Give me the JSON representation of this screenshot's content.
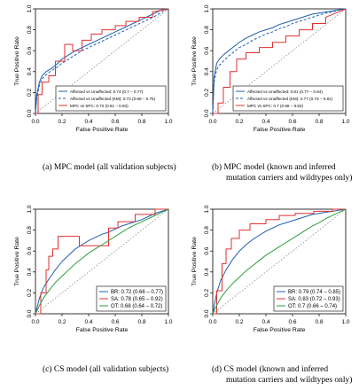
{
  "captions": {
    "a": [
      "(a) MPC model (all validation subjects)"
    ],
    "b": [
      "(b) MPC model (known and inferred",
      "mutation carriers and wildtypes only)"
    ],
    "c": [
      "(c) CS model (all validation subjects)"
    ],
    "d": [
      "(d) CS model (known and inferred",
      "mutation carriers and wildtypes only)"
    ]
  },
  "chart_data": [
    {
      "id": "a",
      "type": "line",
      "xlabel": "False Positive Rate",
      "ylabel": "True Positive Rate",
      "xlim": [
        0,
        1
      ],
      "ylim": [
        0,
        1
      ],
      "xticks": [
        "0.0",
        "0.2",
        "0.4",
        "0.6",
        "0.8",
        "1.0"
      ],
      "yticks": [
        "0.0",
        "0.2",
        "0.4",
        "0.6",
        "0.8",
        "1.0"
      ],
      "reference_line": true,
      "legend_position": "bottom-right",
      "series": [
        {
          "name": "Affected vs Unaffected: 0.74 (0.7 – 0.77)",
          "color": "#1f5fb0",
          "dash": "solid",
          "x": [
            0,
            0.01,
            0.03,
            0.05,
            0.08,
            0.12,
            0.16,
            0.2,
            0.25,
            0.3,
            0.35,
            0.4,
            0.45,
            0.5,
            0.55,
            0.6,
            0.65,
            0.7,
            0.75,
            0.8,
            0.85,
            0.9,
            0.95,
            1.0
          ],
          "y": [
            0,
            0.18,
            0.3,
            0.36,
            0.4,
            0.43,
            0.47,
            0.52,
            0.56,
            0.6,
            0.63,
            0.66,
            0.69,
            0.72,
            0.75,
            0.78,
            0.81,
            0.84,
            0.87,
            0.9,
            0.93,
            0.96,
            0.99,
            1.0
          ]
        },
        {
          "name": "Affected vs Unaffected (KM): 0.72 (0.68 – 0.75)",
          "color": "#1f5fb0",
          "dash": "dashed",
          "x": [
            0,
            0.01,
            0.03,
            0.05,
            0.08,
            0.12,
            0.16,
            0.2,
            0.25,
            0.3,
            0.35,
            0.4,
            0.45,
            0.5,
            0.55,
            0.6,
            0.65,
            0.7,
            0.75,
            0.8,
            0.85,
            0.9,
            0.95,
            1.0
          ],
          "y": [
            0,
            0.15,
            0.27,
            0.33,
            0.37,
            0.41,
            0.44,
            0.48,
            0.52,
            0.56,
            0.6,
            0.63,
            0.66,
            0.69,
            0.72,
            0.75,
            0.78,
            0.81,
            0.84,
            0.87,
            0.9,
            0.93,
            0.97,
            1.0
          ]
        },
        {
          "name": "MPC vs SPC: 0.72 (0.61 – 0.83)",
          "color": "#e03030",
          "dash": "solid",
          "x": [
            0,
            0.02,
            0.02,
            0.05,
            0.05,
            0.1,
            0.1,
            0.15,
            0.15,
            0.22,
            0.22,
            0.28,
            0.28,
            0.35,
            0.35,
            0.42,
            0.42,
            0.5,
            0.5,
            0.6,
            0.6,
            0.68,
            0.68,
            0.78,
            0.78,
            0.88,
            0.88,
            1.0
          ],
          "y": [
            0,
            0,
            0.18,
            0.18,
            0.3,
            0.3,
            0.36,
            0.36,
            0.5,
            0.5,
            0.66,
            0.66,
            0.6,
            0.6,
            0.7,
            0.7,
            0.76,
            0.76,
            0.8,
            0.8,
            0.84,
            0.84,
            0.88,
            0.88,
            0.92,
            0.92,
            0.97,
            1.0
          ]
        }
      ]
    },
    {
      "id": "b",
      "type": "line",
      "xlabel": "False Positive Rate",
      "ylabel": "True Positive Rate",
      "xlim": [
        0,
        1
      ],
      "ylim": [
        0,
        1
      ],
      "xticks": [
        "0.0",
        "0.2",
        "0.4",
        "0.6",
        "0.8",
        "1.0"
      ],
      "yticks": [
        "0.0",
        "0.2",
        "0.4",
        "0.6",
        "0.8",
        "1.0"
      ],
      "reference_line": true,
      "legend_position": "bottom-right",
      "series": [
        {
          "name": "Affected vs Unaffected: 0.81 (0.77 – 0.84)",
          "color": "#1f5fb0",
          "dash": "solid",
          "x": [
            0,
            0.01,
            0.03,
            0.05,
            0.08,
            0.12,
            0.16,
            0.2,
            0.25,
            0.3,
            0.35,
            0.4,
            0.45,
            0.5,
            0.55,
            0.6,
            0.65,
            0.7,
            0.75,
            0.8,
            0.85,
            0.9,
            0.95,
            1.0
          ],
          "y": [
            0,
            0.35,
            0.48,
            0.52,
            0.56,
            0.6,
            0.64,
            0.68,
            0.72,
            0.75,
            0.78,
            0.8,
            0.82,
            0.85,
            0.87,
            0.89,
            0.91,
            0.93,
            0.95,
            0.96,
            0.97,
            0.98,
            0.99,
            1.0
          ]
        },
        {
          "name": "Affected vs Unaffected (KM): 0.77 (0.73 – 0.81)",
          "color": "#1f5fb0",
          "dash": "dashed",
          "x": [
            0,
            0.01,
            0.03,
            0.05,
            0.08,
            0.12,
            0.16,
            0.2,
            0.25,
            0.3,
            0.35,
            0.4,
            0.45,
            0.5,
            0.55,
            0.6,
            0.65,
            0.7,
            0.75,
            0.8,
            0.85,
            0.9,
            0.95,
            1.0
          ],
          "y": [
            0,
            0.3,
            0.42,
            0.46,
            0.5,
            0.55,
            0.59,
            0.63,
            0.66,
            0.7,
            0.73,
            0.76,
            0.78,
            0.81,
            0.83,
            0.86,
            0.88,
            0.9,
            0.92,
            0.94,
            0.96,
            0.97,
            0.99,
            1.0
          ]
        },
        {
          "name": "MPC vs SPC: 0.7 (0.58 – 0.82)",
          "color": "#e03030",
          "dash": "solid",
          "x": [
            0,
            0.04,
            0.04,
            0.08,
            0.08,
            0.13,
            0.13,
            0.18,
            0.18,
            0.25,
            0.25,
            0.35,
            0.35,
            0.45,
            0.45,
            0.55,
            0.55,
            0.65,
            0.65,
            0.75,
            0.75,
            0.85,
            0.85,
            1.0
          ],
          "y": [
            0,
            0,
            0.1,
            0.1,
            0.25,
            0.25,
            0.4,
            0.4,
            0.52,
            0.52,
            0.58,
            0.58,
            0.63,
            0.63,
            0.68,
            0.68,
            0.74,
            0.74,
            0.8,
            0.8,
            0.86,
            0.86,
            0.92,
            1.0
          ]
        }
      ]
    },
    {
      "id": "c",
      "type": "line",
      "xlabel": "False Positive Rate",
      "ylabel": "True Positive Rate",
      "xlim": [
        0,
        1
      ],
      "ylim": [
        0,
        1
      ],
      "xticks": [
        "0.0",
        "0.2",
        "0.4",
        "0.6",
        "0.8",
        "1.0"
      ],
      "yticks": [
        "0.0",
        "0.2",
        "0.4",
        "0.6",
        "0.8",
        "1.0"
      ],
      "reference_line": true,
      "legend_position": "bottom-right",
      "series": [
        {
          "name": "BR: 0.72 (0.66 – 0.77)",
          "color": "#1f5fb0",
          "dash": "solid",
          "x": [
            0,
            0.03,
            0.06,
            0.1,
            0.15,
            0.2,
            0.25,
            0.3,
            0.35,
            0.4,
            0.45,
            0.5,
            0.55,
            0.6,
            0.65,
            0.7,
            0.75,
            0.8,
            0.85,
            0.9,
            0.95,
            1.0
          ],
          "y": [
            0,
            0.15,
            0.25,
            0.33,
            0.42,
            0.5,
            0.56,
            0.62,
            0.66,
            0.7,
            0.73,
            0.76,
            0.78,
            0.81,
            0.84,
            0.86,
            0.88,
            0.9,
            0.93,
            0.96,
            0.98,
            1.0
          ]
        },
        {
          "name": "SA: 0.78 (0.65 – 0.92)",
          "color": "#e03030",
          "dash": "solid",
          "x": [
            0,
            0.04,
            0.04,
            0.08,
            0.08,
            0.1,
            0.1,
            0.13,
            0.13,
            0.17,
            0.17,
            0.33,
            0.33,
            0.55,
            0.55,
            0.62,
            0.62,
            0.75,
            0.75,
            0.9,
            0.9,
            1.0
          ],
          "y": [
            0,
            0,
            0.2,
            0.2,
            0.42,
            0.42,
            0.55,
            0.55,
            0.62,
            0.62,
            0.74,
            0.74,
            0.65,
            0.65,
            0.82,
            0.82,
            0.88,
            0.88,
            0.95,
            0.95,
            1.0,
            1.0
          ]
        },
        {
          "name": "OT: 0.68 (0.64 – 0.72)",
          "color": "#2e9e3e",
          "dash": "solid",
          "x": [
            0,
            0.03,
            0.06,
            0.1,
            0.15,
            0.2,
            0.25,
            0.3,
            0.35,
            0.4,
            0.45,
            0.5,
            0.55,
            0.6,
            0.65,
            0.7,
            0.75,
            0.8,
            0.85,
            0.9,
            0.95,
            1.0
          ],
          "y": [
            0,
            0.08,
            0.15,
            0.22,
            0.3,
            0.36,
            0.42,
            0.48,
            0.53,
            0.58,
            0.62,
            0.66,
            0.7,
            0.74,
            0.78,
            0.82,
            0.85,
            0.88,
            0.91,
            0.94,
            0.97,
            1.0
          ]
        }
      ]
    },
    {
      "id": "d",
      "type": "line",
      "xlabel": "False Positive Rate",
      "ylabel": "True Positive Rate",
      "xlim": [
        0,
        1
      ],
      "ylim": [
        0,
        1
      ],
      "xticks": [
        "0.0",
        "0.2",
        "0.4",
        "0.6",
        "0.8",
        "1.0"
      ],
      "yticks": [
        "0.0",
        "0.2",
        "0.4",
        "0.6",
        "0.8",
        "1.0"
      ],
      "reference_line": true,
      "legend_position": "bottom-right",
      "series": [
        {
          "name": "BR: 0.79 (0.74 – 0.85)",
          "color": "#1f5fb0",
          "dash": "solid",
          "x": [
            0,
            0.03,
            0.06,
            0.1,
            0.15,
            0.2,
            0.25,
            0.3,
            0.35,
            0.4,
            0.45,
            0.5,
            0.55,
            0.6,
            0.65,
            0.7,
            0.75,
            0.8,
            0.85,
            0.9,
            0.95,
            1.0
          ],
          "y": [
            0,
            0.2,
            0.32,
            0.42,
            0.52,
            0.6,
            0.66,
            0.71,
            0.75,
            0.79,
            0.82,
            0.85,
            0.87,
            0.89,
            0.91,
            0.93,
            0.95,
            0.96,
            0.97,
            0.98,
            0.99,
            1.0
          ]
        },
        {
          "name": "SA: 0.83 (0.72 – 0.93)",
          "color": "#e03030",
          "dash": "solid",
          "x": [
            0,
            0.03,
            0.03,
            0.07,
            0.07,
            0.1,
            0.1,
            0.14,
            0.14,
            0.2,
            0.2,
            0.28,
            0.28,
            0.4,
            0.4,
            0.5,
            0.5,
            0.62,
            0.62,
            0.76,
            0.76,
            0.9,
            0.9,
            1.0
          ],
          "y": [
            0,
            0,
            0.22,
            0.22,
            0.48,
            0.48,
            0.62,
            0.62,
            0.72,
            0.72,
            0.8,
            0.8,
            0.86,
            0.86,
            0.9,
            0.9,
            0.94,
            0.94,
            0.96,
            0.96,
            0.98,
            0.98,
            1.0,
            1.0
          ]
        },
        {
          "name": "OT: 0.7 (0.66 – 0.74)",
          "color": "#2e9e3e",
          "dash": "solid",
          "x": [
            0,
            0.03,
            0.06,
            0.1,
            0.15,
            0.2,
            0.25,
            0.3,
            0.35,
            0.4,
            0.45,
            0.5,
            0.55,
            0.6,
            0.65,
            0.7,
            0.75,
            0.8,
            0.85,
            0.9,
            0.95,
            1.0
          ],
          "y": [
            0,
            0.08,
            0.15,
            0.22,
            0.29,
            0.35,
            0.41,
            0.46,
            0.51,
            0.56,
            0.6,
            0.64,
            0.68,
            0.72,
            0.76,
            0.8,
            0.84,
            0.87,
            0.91,
            0.94,
            0.97,
            1.0
          ]
        }
      ]
    }
  ]
}
